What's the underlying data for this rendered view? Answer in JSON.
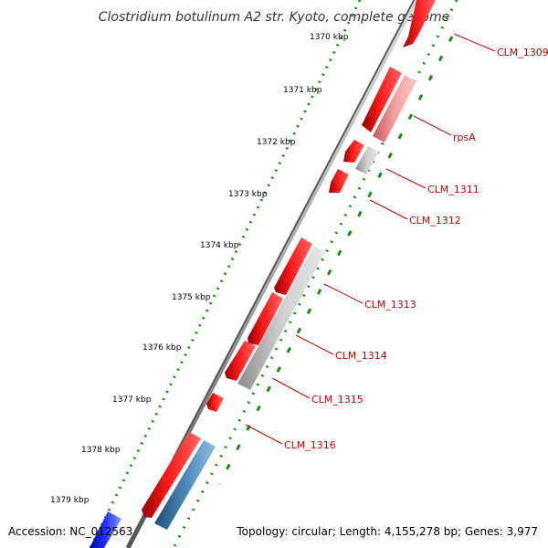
{
  "title": "Clostridium botulinum A2 str. Kyoto, complete genome",
  "ticks": [
    "1370 kbp",
    "1371 kbp",
    "1372 kbp",
    "1373 kbp",
    "1374 kbp",
    "1375 kbp",
    "1376 kbp",
    "1377 kbp",
    "1378 kbp",
    "1379 kbp"
  ],
  "genes": [
    {
      "label": "CLM_1309",
      "strand": "forward",
      "color": "#ff0000"
    },
    {
      "label": "rpsA",
      "strand": "reverse",
      "color": "#e88080"
    },
    {
      "label": "CLM_1311",
      "strand": "reverse",
      "color": "#bdbdbd"
    },
    {
      "label": "CLM_1312",
      "strand": "forward",
      "color": "#ff0000"
    },
    {
      "label": "CLM_1313",
      "strand": "reverse",
      "color": "#bdbdbd"
    },
    {
      "label": "CLM_1314",
      "strand": "forward",
      "color": "#ff0000"
    },
    {
      "label": "CLM_1315",
      "strand": "forward",
      "color": "#ff0000"
    },
    {
      "label": "CLM_1316",
      "strand": "reverse",
      "color": "#4a86b8"
    }
  ],
  "footer": {
    "accession": "Accession: NC_012563",
    "topology": "Topology: circular; Length: 4,155,278 bp; Genes: 3,977"
  },
  "colors": {
    "cds": "#ff0000",
    "label": "#cc0000",
    "backbone": "#888888",
    "gc_dots": "#1a8a1a",
    "blue_feature": "#2233dd"
  }
}
